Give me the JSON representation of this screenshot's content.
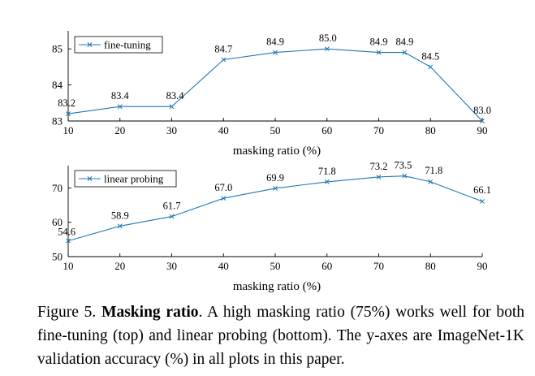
{
  "chart_data": [
    {
      "type": "line",
      "legend": "fine-tuning",
      "legend_position": "top-left",
      "x": [
        10,
        20,
        30,
        40,
        50,
        60,
        70,
        75,
        80,
        90
      ],
      "values": [
        83.2,
        83.4,
        83.4,
        84.7,
        84.9,
        85.0,
        84.9,
        84.9,
        84.5,
        83.0
      ],
      "data_labels": [
        "83.2",
        "83.4",
        "83.4",
        "84.7",
        "84.9",
        "85.0",
        "84.9",
        "84.9",
        "84.5",
        "83.0"
      ],
      "xticks": [
        10,
        20,
        30,
        40,
        50,
        60,
        70,
        80,
        90
      ],
      "yticks": [
        83,
        84,
        85
      ],
      "xlim": [
        10,
        90
      ],
      "ylim": [
        83,
        85.5
      ],
      "xlabel": "masking ratio (%)",
      "ylabel": "",
      "color": "#1f77b4"
    },
    {
      "type": "line",
      "legend": "linear probing",
      "legend_position": "top-left",
      "x": [
        10,
        20,
        30,
        40,
        50,
        60,
        70,
        75,
        80,
        90
      ],
      "values": [
        54.6,
        58.9,
        61.7,
        67.0,
        69.9,
        71.8,
        73.2,
        73.5,
        71.8,
        66.1
      ],
      "data_labels": [
        "54.6",
        "58.9",
        "61.7",
        "67.0",
        "69.9",
        "71.8",
        "73.2",
        "73.5",
        "71.8",
        "66.1"
      ],
      "xticks": [
        10,
        20,
        30,
        40,
        50,
        60,
        70,
        80,
        90
      ],
      "yticks": [
        50,
        60,
        70
      ],
      "xlim": [
        10,
        90
      ],
      "ylim": [
        50,
        76.5
      ],
      "xlabel": "masking ratio (%)",
      "ylabel": "",
      "color": "#1f77b4"
    }
  ],
  "caption": {
    "label": "Figure 5.",
    "title": "Masking ratio",
    "text": ". A high masking ratio (75%) works well for both fine-tuning (top) and linear probing (bottom). The y-axes are ImageNet-1K validation accuracy (%) in all plots in this paper."
  }
}
